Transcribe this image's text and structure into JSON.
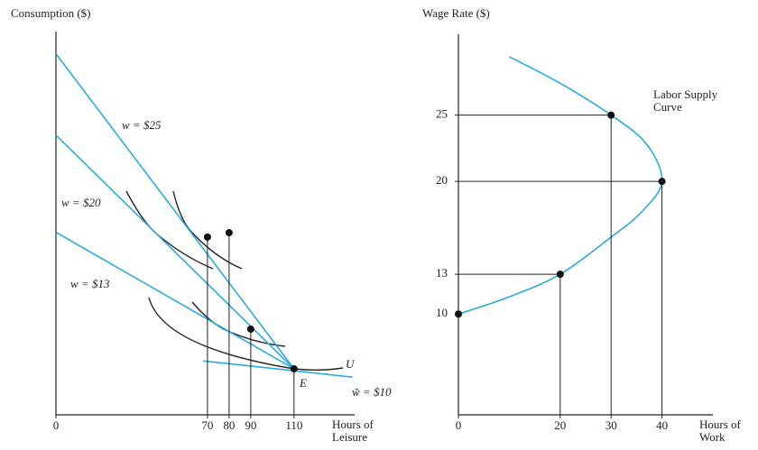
{
  "chart_data": [
    {
      "type": "line",
      "y_label": "Consumption ($)",
      "x_label": "Hours of Leisure",
      "xlim": [
        0,
        138
      ],
      "ylim": [
        0,
        100
      ],
      "xticks": [
        0,
        70,
        80,
        90,
        110
      ],
      "series": [
        {
          "name": "w = $25",
          "color": "#29abe2",
          "x": [
            0,
            110
          ],
          "values": [
            91,
            11.6
          ]
        },
        {
          "name": "w = $20",
          "color": "#29abe2",
          "x": [
            0,
            110
          ],
          "values": [
            70.5,
            11.6
          ]
        },
        {
          "name": "w = $13",
          "color": "#29abe2",
          "x": [
            0,
            110
          ],
          "values": [
            46,
            11.6
          ]
        },
        {
          "name": "w̃ = $10",
          "color": "#29abe2",
          "x": [
            68,
            137
          ],
          "values": [
            13.6,
            9.5
          ]
        }
      ],
      "points": {
        "color": "#111111",
        "x": [
          70,
          80,
          90,
          110
        ],
        "values": [
          44.8,
          45.9,
          21.6,
          11.6
        ]
      },
      "annotations": [
        "U",
        "E"
      ]
    },
    {
      "type": "line",
      "y_label": "Wage Rate ($)",
      "x_label": "Hours of Work",
      "xlim": [
        0,
        50
      ],
      "ylim": [
        2.4,
        31.3
      ],
      "xticks": [
        0,
        20,
        30,
        40
      ],
      "yticks": [
        10,
        13,
        20,
        25
      ],
      "series": [
        {
          "color": "#29abe2",
          "x": [
            0,
            10,
            20,
            30,
            36,
            40,
            37,
            30,
            20,
            10
          ],
          "values": [
            10,
            11.3,
            13,
            15.8,
            17.7,
            20,
            22.8,
            25,
            27.4,
            29.4
          ]
        }
      ],
      "points": {
        "color": "#111111",
        "x": [
          0,
          20,
          40,
          30
        ],
        "values": [
          10,
          13,
          20,
          25
        ]
      },
      "annotations": [
        "Labor Supply Curve"
      ]
    }
  ]
}
